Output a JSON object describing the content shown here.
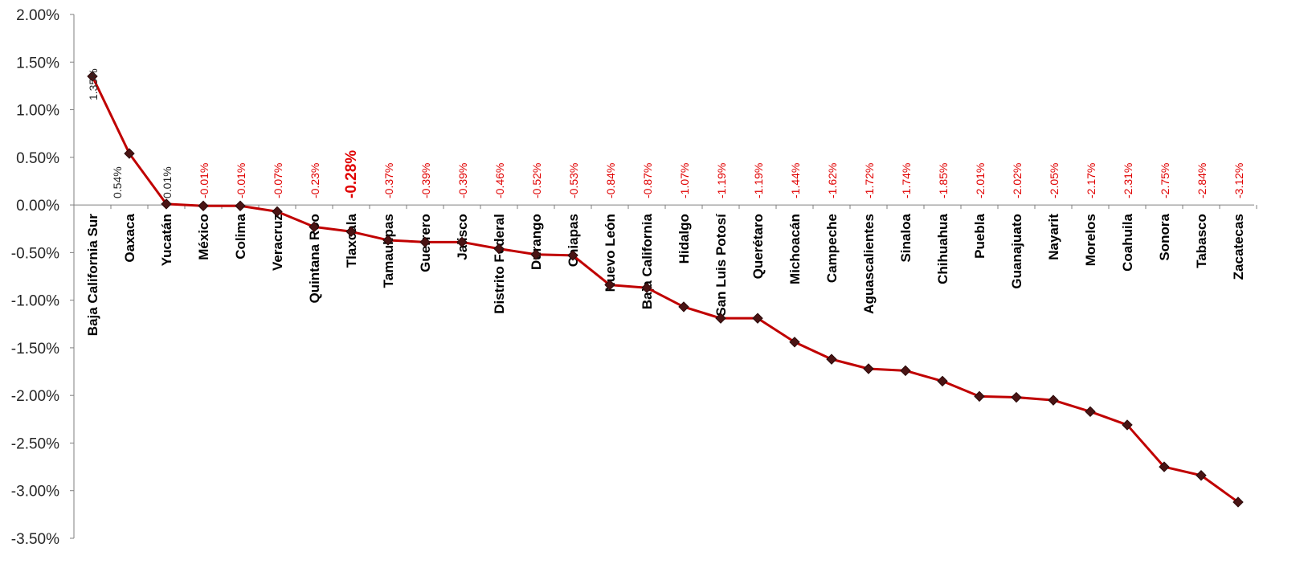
{
  "chart_data": {
    "type": "line",
    "title": "",
    "xlabel": "",
    "ylabel": "",
    "ylim": [
      -3.5,
      2.0
    ],
    "yticks": [
      "2.00%",
      "1.50%",
      "1.00%",
      "0.50%",
      "0.00%",
      "-0.50%",
      "-1.00%",
      "-1.50%",
      "-2.00%",
      "-2.50%",
      "-3.00%",
      "-3.50%"
    ],
    "tick_values": [
      2.0,
      1.5,
      1.0,
      0.5,
      0.0,
      -0.5,
      -1.0,
      -1.5,
      -2.0,
      -2.5,
      -3.0,
      -3.5
    ],
    "grid": false,
    "legend": "none",
    "categories": [
      "Baja California Sur",
      "Oaxaca",
      "Yucatán",
      "México",
      "Colima",
      "Veracruz",
      "Quintana Roo",
      "Tlaxcala",
      "Tamaulipas",
      "Guerrero",
      "Jalisco",
      "Distrito Federal",
      "Durango",
      "Chiapas",
      "Nuevo León",
      "Baja California",
      "Hidalgo",
      "San Luis Potosí",
      "Querétaro",
      "Michoacán",
      "Campeche",
      "Aguascalientes",
      "Sinaloa",
      "Chihuahua",
      "Puebla",
      "Guanajuato",
      "Nayarit",
      "Morelos",
      "Coahuila",
      "Sonora",
      "Tabasco",
      "Zacatecas"
    ],
    "values": [
      1.35,
      0.54,
      0.01,
      -0.01,
      -0.01,
      -0.07,
      -0.23,
      -0.28,
      -0.37,
      -0.39,
      -0.39,
      -0.46,
      -0.52,
      -0.53,
      -0.84,
      -0.87,
      -1.07,
      -1.19,
      -1.19,
      -1.44,
      -1.62,
      -1.72,
      -1.74,
      -1.85,
      -2.01,
      -2.02,
      -2.05,
      -2.17,
      -2.31,
      -2.75,
      -2.84,
      -3.12
    ],
    "data_labels": [
      "1.35%",
      "0.54%",
      "0.01%",
      "-0.01%",
      "-0.01%",
      "-0.07%",
      "-0.23%",
      "-0.28%",
      "-0.37%",
      "-0.39%",
      "-0.39%",
      "-0.46%",
      "-0.52%",
      "-0.53%",
      "-0.84%",
      "-0.87%",
      "-1.07%",
      "-1.19%",
      "-1.19%",
      "-1.44%",
      "-1.62%",
      "-1.72%",
      "-1.74%",
      "-1.85%",
      "-2.01%",
      "-2.02%",
      "-2.05%",
      "-2.17%",
      "-2.31%",
      "-2.75%",
      "-2.84%",
      "-3.12%"
    ],
    "highlight_category": "Tlaxcala",
    "colors": {
      "line": "#c00000",
      "marker": "#4a1414",
      "label_positive": "#262626",
      "label_negative": "#e00000",
      "axis": "#7f7f7f"
    }
  }
}
